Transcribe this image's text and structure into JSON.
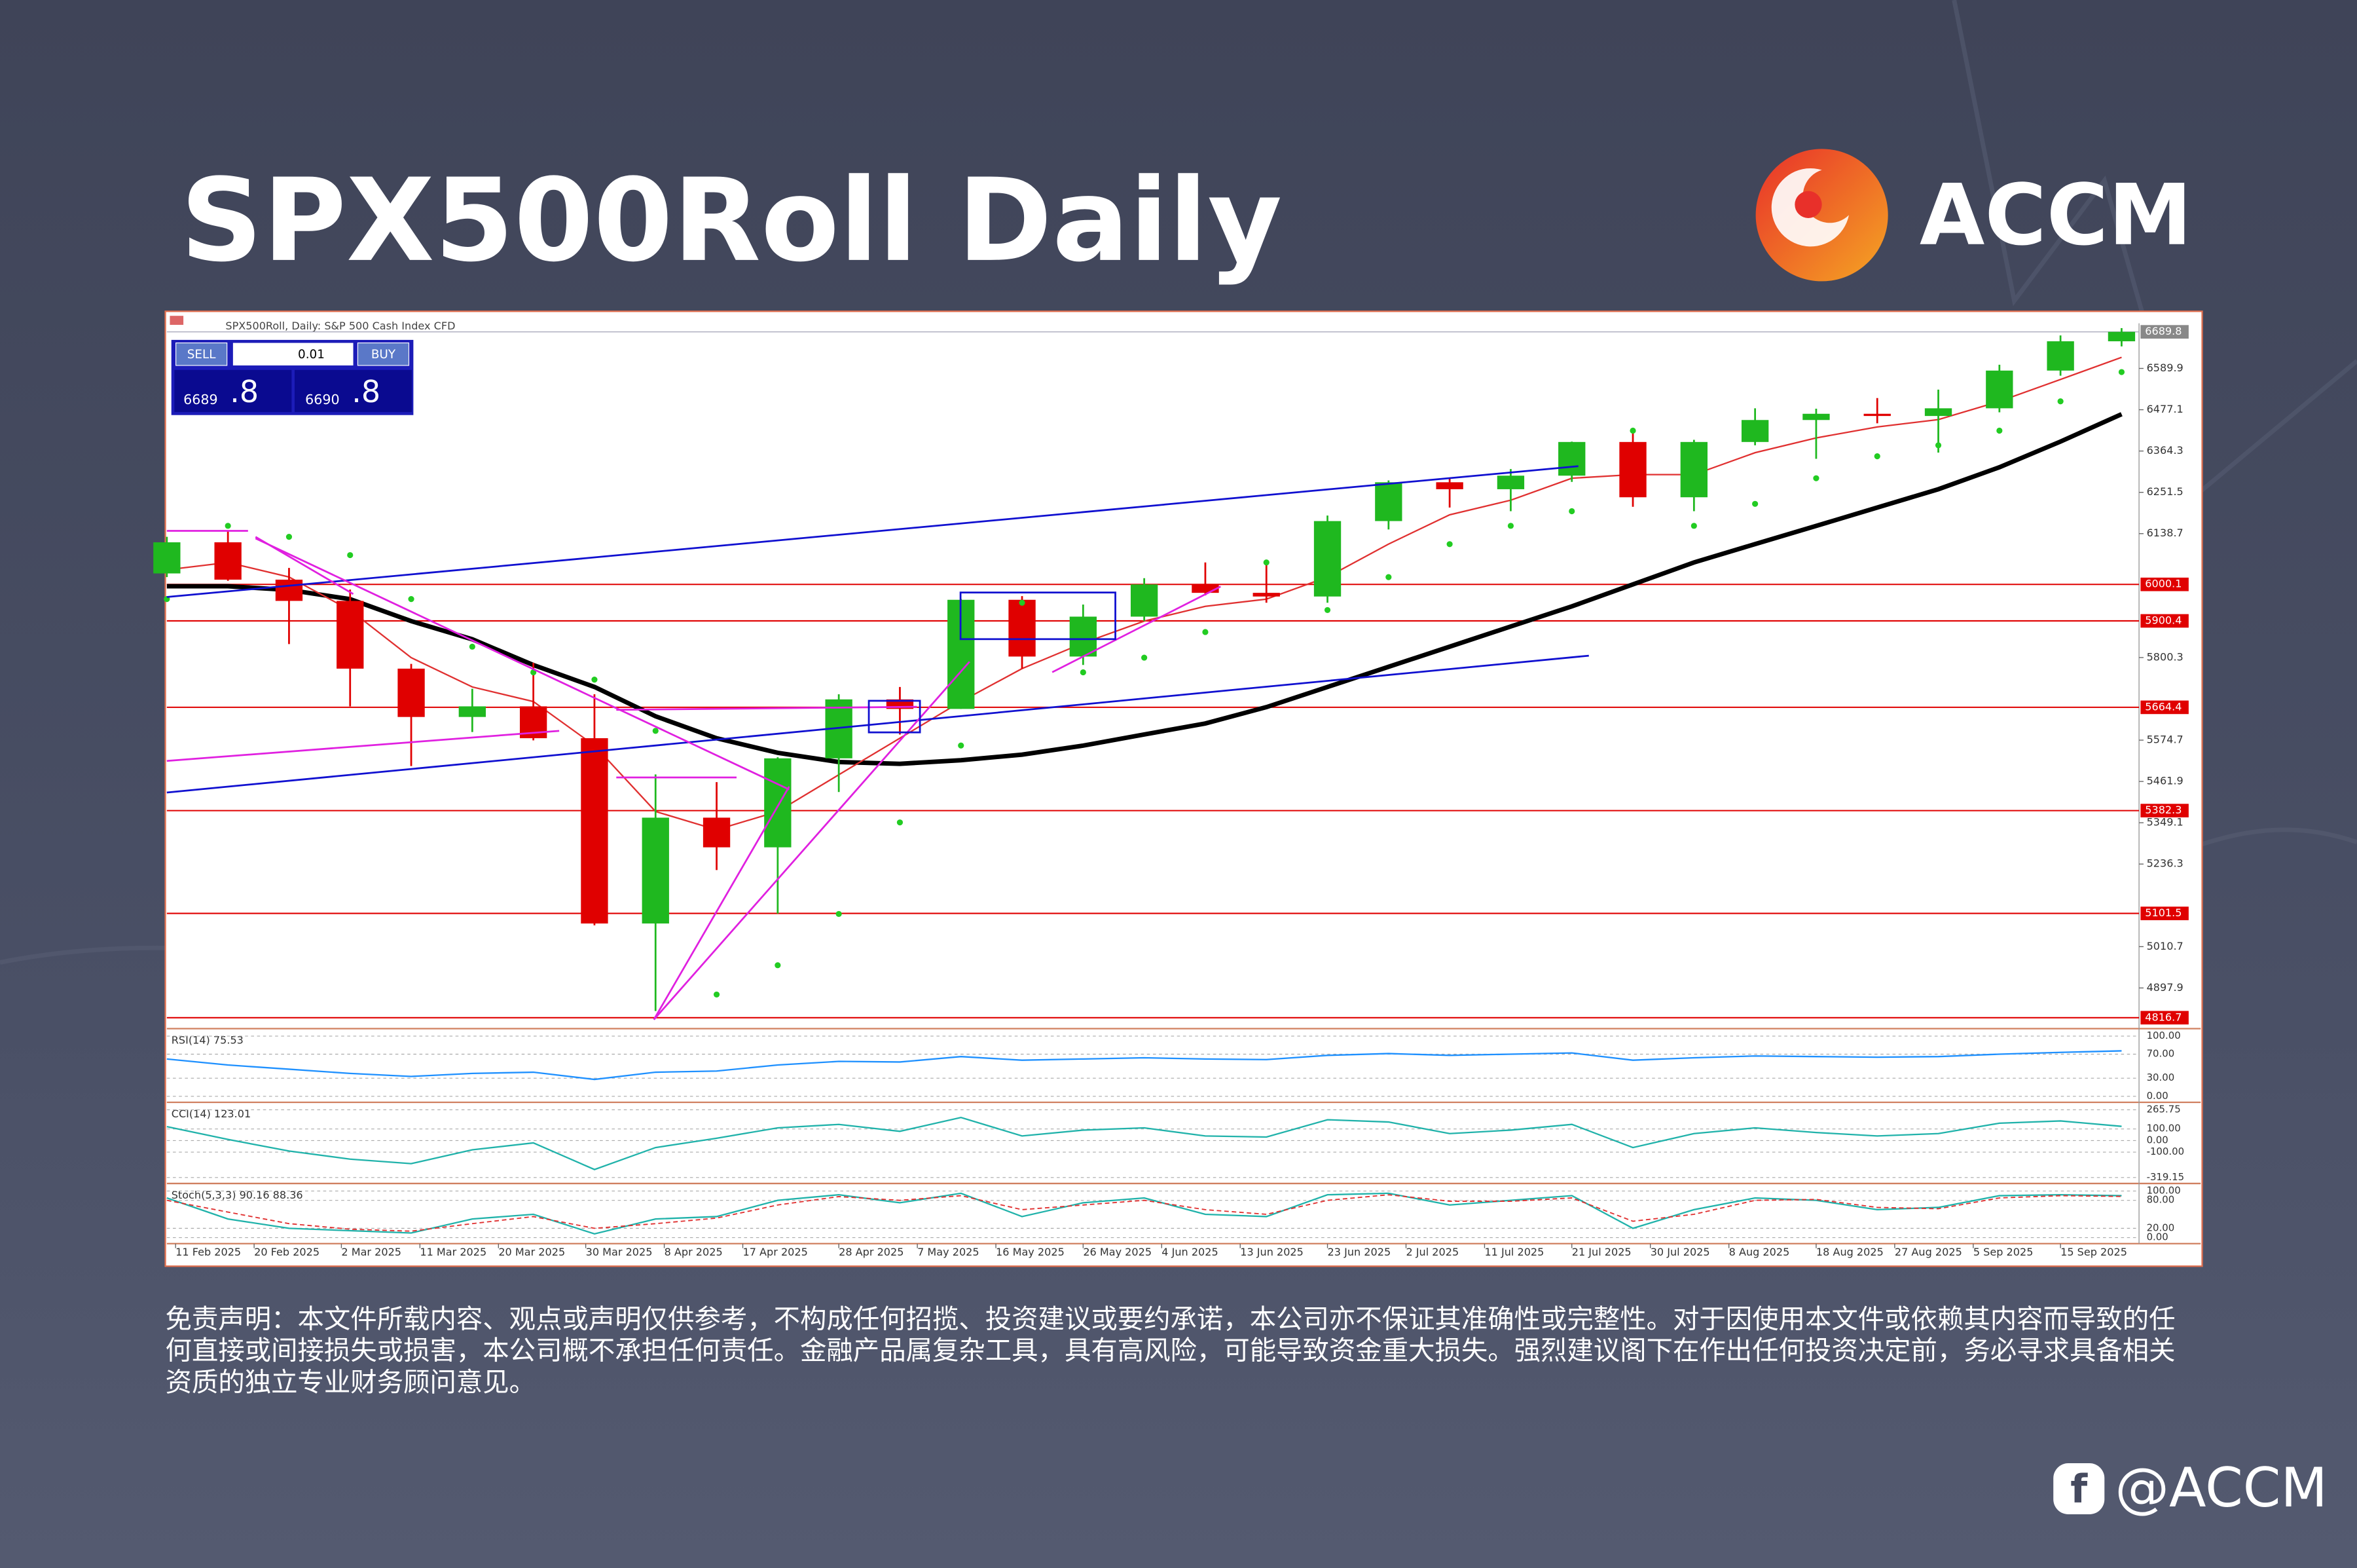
{
  "header": {
    "title": "SPX500Roll Daily",
    "brand": "ACCM"
  },
  "chart_data": {
    "type": "candlestick",
    "title": "SPX500Roll, Daily:  S&P 500 Cash Index CFD",
    "trade_panel": {
      "sell": "SELL",
      "buy": "BUY",
      "lot": "0.01",
      "sell_main": "6689",
      "sell_frac": ".8",
      "buy_main": "6690",
      "buy_frac": ".8"
    },
    "x": [
      "10 Feb 2025",
      "17 Feb 2025",
      "24 Feb 2025",
      "3 Mar 2025",
      "10 Mar 2025",
      "17 Mar 2025",
      "24 Mar 2025",
      "31 Mar 2025",
      "7 Apr 2025",
      "14 Apr 2025",
      "21 Apr 2025",
      "28 Apr 2025",
      "5 May 2025",
      "12 May 2025",
      "19 May 2025",
      "26 May 2025",
      "2 Jun 2025",
      "9 Jun 2025",
      "16 Jun 2025",
      "23 Jun 2025",
      "30 Jun 2025",
      "7 Jul 2025",
      "14 Jul 2025",
      "21 Jul 2025",
      "28 Jul 2025",
      "4 Aug 2025",
      "11 Aug 2025",
      "18 Aug 2025",
      "25 Aug 2025",
      "1 Sep 2025",
      "8 Sep 2025",
      "15 Sep 2025",
      "22 Sep 2025"
    ],
    "open": [
      6030,
      6115,
      6013,
      5955,
      5770,
      5638,
      5667,
      5580,
      5074,
      5363,
      5282,
      5525,
      5686,
      5660,
      5958,
      5803,
      5912,
      6000,
      5977,
      5967,
      6173,
      6279,
      6260,
      6297,
      6389,
      6238,
      6389,
      6449,
      6466,
      6460,
      6481,
      6584,
      6664
    ],
    "high": [
      6130,
      6147,
      6045,
      5986,
      5783,
      5715,
      5786,
      5700,
      5481,
      5460,
      5528,
      5700,
      5720,
      5960,
      5968,
      5945,
      6017,
      6060,
      6060,
      6188,
      6284,
      6290,
      6315,
      6390,
      6427,
      6395,
      6481,
      6480,
      6509,
      6532,
      6600,
      6680,
      6700
    ],
    "low": [
      6020,
      6010,
      5837,
      5667,
      5504,
      5597,
      5574,
      5069,
      4835,
      5220,
      5101,
      5433,
      5590,
      5660,
      5770,
      5780,
      5900,
      5970,
      5950,
      5950,
      6150,
      6210,
      6200,
      6280,
      6212,
      6200,
      6380,
      6343,
      6440,
      6360,
      6470,
      6570,
      6650
    ],
    "close": [
      6115,
      6013,
      5955,
      5770,
      5638,
      5667,
      5580,
      5074,
      5363,
      5282,
      5525,
      5686,
      5660,
      5958,
      5803,
      5912,
      6000,
      5977,
      5967,
      6173,
      6279,
      6260,
      6297,
      6389,
      6238,
      6389,
      6449,
      6466,
      6460,
      6481,
      6584,
      6664,
      6689.8
    ],
    "up_color": "#1fb81f",
    "down_color": "#e00000",
    "overlays": [
      {
        "color": "#000000",
        "width": 3,
        "values": [
          5995,
          5995,
          5985,
          5960,
          5900,
          5850,
          5780,
          5720,
          5640,
          5580,
          5540,
          5515,
          5510,
          5520,
          5535,
          5560,
          5590,
          5620,
          5665,
          5720,
          5775,
          5830,
          5885,
          5940,
          6000,
          6060,
          6110,
          6160,
          6210,
          6260,
          6320,
          6390,
          6465
        ]
      },
      {
        "color": "#e03030",
        "width": 1,
        "values": [
          6040,
          6060,
          6020,
          5930,
          5800,
          5720,
          5680,
          5560,
          5380,
          5330,
          5380,
          5480,
          5580,
          5680,
          5770,
          5840,
          5900,
          5940,
          5960,
          6020,
          6110,
          6190,
          6230,
          6290,
          6300,
          6300,
          6360,
          6400,
          6430,
          6450,
          6500,
          6560,
          6620
        ]
      }
    ],
    "sar": {
      "color": "#22cc22",
      "values": [
        5960,
        6160,
        6130,
        6080,
        5960,
        5830,
        5760,
        5740,
        5600,
        4880,
        4960,
        5100,
        5350,
        5560,
        5950,
        5760,
        5800,
        5870,
        6060,
        5930,
        6020,
        6110,
        6160,
        6200,
        6420,
        6160,
        6220,
        6290,
        6350,
        6380,
        6420,
        6500,
        6580
      ]
    },
    "xlim": [
      "10 Feb 2025",
      "24 Sep 2025"
    ],
    "xticks": [
      "11 Feb 2025",
      "20 Feb 2025",
      "2 Mar 2025",
      "11 Mar 2025",
      "20 Mar 2025",
      "30 Mar 2025",
      "8 Apr 2025",
      "17 Apr 2025",
      "28 Apr 2025",
      "7 May 2025",
      "16 May 2025",
      "26 May 2025",
      "4 Jun 2025",
      "13 Jun 2025",
      "23 Jun 2025",
      "2 Jul 2025",
      "11 Jul 2025",
      "21 Jul 2025",
      "30 Jul 2025",
      "8 Aug 2025",
      "18 Aug 2025",
      "27 Aug 2025",
      "5 Sep 2025",
      "15 Sep 2025"
    ],
    "ylim": [
      4791,
      6713
    ],
    "yticks": [
      6589.9,
      6477.1,
      6364.3,
      6251.5,
      6138.7,
      5800.3,
      5574.7,
      5461.9,
      5349.1,
      5236.3,
      5010.7,
      4897.9
    ],
    "last_price": 6689.8,
    "levels": [
      6000.1,
      5900.4,
      5664.4,
      5382.3,
      5101.5,
      4816.7
    ],
    "level_color": "#e00000",
    "indicators": [
      {
        "label": "RSI(14) 75.53",
        "color": "#1e90ff",
        "ylim": [
          0,
          100
        ],
        "yticks": [
          {
            "value": 100,
            "label": "100.00"
          },
          {
            "value": 70,
            "label": "70.00"
          },
          {
            "value": 30,
            "label": "30.00"
          },
          {
            "value": 0,
            "label": "0.00"
          }
        ],
        "values": [
          62,
          52,
          45,
          38,
          33,
          38,
          40,
          28,
          40,
          42,
          52,
          58,
          57,
          66,
          60,
          62,
          64,
          62,
          61,
          68,
          71,
          68,
          70,
          72,
          60,
          64,
          67,
          66,
          65,
          66,
          70,
          73,
          75.53
        ]
      },
      {
        "label": "CCI(14) 123.01",
        "color": "#20b2aa",
        "ylim": [
          -319.15,
          265.75
        ],
        "yticks": [
          265.75,
          {
            "value": 100,
            "label": "100.00"
          },
          {
            "value": 0,
            "label": "0.00"
          },
          {
            "value": -100,
            "label": "-100.00"
          },
          -319.15
        ],
        "values": [
          120,
          10,
          -90,
          -160,
          -200,
          -80,
          -20,
          -250,
          -60,
          20,
          110,
          140,
          80,
          200,
          40,
          90,
          110,
          40,
          30,
          180,
          160,
          60,
          90,
          140,
          -60,
          60,
          110,
          70,
          40,
          60,
          150,
          170,
          123.01
        ]
      },
      {
        "label": "Stoch(5,3,3) 90.16 88.36",
        "color": "#20b2aa",
        "signal_color": "#e03030",
        "ylim": [
          0,
          100
        ],
        "yticks": [
          {
            "value": 100,
            "label": "100.00"
          },
          {
            "value": 80,
            "label": "80.00"
          },
          {
            "value": 20,
            "label": "20.00"
          },
          {
            "value": 0,
            "label": "0.00"
          }
        ],
        "values": [
          85,
          40,
          20,
          15,
          10,
          40,
          50,
          8,
          40,
          45,
          80,
          92,
          75,
          95,
          45,
          75,
          85,
          50,
          45,
          92,
          95,
          70,
          80,
          90,
          20,
          60,
          85,
          80,
          60,
          65,
          90,
          92,
          90.16
        ],
        "signal": [
          80,
          55,
          30,
          18,
          14,
          30,
          45,
          20,
          30,
          42,
          70,
          88,
          80,
          90,
          60,
          70,
          80,
          60,
          50,
          80,
          92,
          78,
          78,
          85,
          35,
          50,
          80,
          82,
          65,
          62,
          85,
          90,
          88.36
        ]
      }
    ]
  },
  "disclaimer": "免责声明：本文件所载内容、观点或声明仅供参考，不构成任何招揽、投资建议或要约承诺，本公司亦不保证其准确性或完整性。对于因使用本文件或依赖其内容而导致的任何直接或间接损失或损害，本公司概不承担任何责任。金融产品属复杂工具，具有高风险，可能导致资金重大损失。强烈建议阁下在作出任何投资决定前，务必寻求具备相关资质的独立专业财务顾问意见。",
  "footer": {
    "handle": "@ACCM"
  }
}
